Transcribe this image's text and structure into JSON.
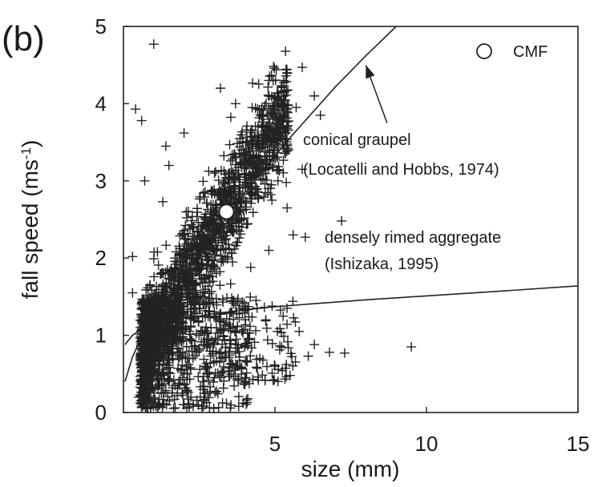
{
  "panel_label": "(b)",
  "chart_data": {
    "type": "scatter",
    "xlabel": "size (mm)",
    "ylabel_main": "fall speed (ms",
    "ylabel_sup": "-1",
    "ylabel_close": ")",
    "xlim": [
      0,
      15
    ],
    "ylim": [
      0,
      5
    ],
    "xticks": [
      5,
      10,
      15
    ],
    "yticks": [
      0,
      1,
      2,
      3,
      4,
      5
    ],
    "legend": {
      "label": "CMF",
      "placement": "top-right"
    },
    "cmf_point": {
      "x": 3.4,
      "y": 2.6
    },
    "annotations": {
      "graupel_line1": "conical graupel",
      "graupel_line2": "(Locatelli and Hobbs, 1974)",
      "aggregate_line1": "densely rimed aggregate",
      "aggregate_line2": "(Ishizaka, 1995)"
    },
    "arrow": {
      "from": [
        8.7,
        3.75
      ],
      "to": [
        8.0,
        4.5
      ]
    },
    "curves": [
      {
        "name": "conical graupel",
        "x": [
          0.05,
          0.3,
          0.6,
          1.0,
          1.5,
          2.0,
          2.5,
          3.0,
          3.5,
          4.0,
          4.5,
          5.0,
          5.5,
          6.0,
          6.5,
          7.0,
          7.5,
          8.0,
          8.5,
          9.0
        ],
        "y": [
          0.4,
          0.72,
          0.98,
          1.22,
          1.5,
          1.78,
          2.05,
          2.32,
          2.58,
          2.84,
          3.08,
          3.32,
          3.56,
          3.78,
          4.0,
          4.22,
          4.42,
          4.62,
          4.81,
          5.0
        ]
      },
      {
        "name": "densely rimed aggregate",
        "x": [
          0.05,
          0.3,
          0.6,
          1.0,
          1.5,
          2.0,
          2.5,
          3.0,
          4.0,
          5.0,
          6.0,
          8.0,
          10.0,
          12.0,
          15.0
        ],
        "y": [
          0.88,
          1.0,
          1.08,
          1.13,
          1.18,
          1.22,
          1.25,
          1.28,
          1.33,
          1.37,
          1.4,
          1.46,
          1.51,
          1.56,
          1.64
        ]
      }
    ],
    "outliers": [
      {
        "x": 1.0,
        "y": 4.77
      },
      {
        "x": 0.4,
        "y": 3.93
      },
      {
        "x": 0.6,
        "y": 3.78
      },
      {
        "x": 1.4,
        "y": 3.45
      },
      {
        "x": 2.0,
        "y": 3.62
      },
      {
        "x": 1.5,
        "y": 3.2
      },
      {
        "x": 0.7,
        "y": 3.0
      },
      {
        "x": 3.7,
        "y": 4.0
      },
      {
        "x": 3.2,
        "y": 4.2
      },
      {
        "x": 4.8,
        "y": 4.3
      },
      {
        "x": 5.4,
        "y": 4.4
      },
      {
        "x": 5.9,
        "y": 4.47
      },
      {
        "x": 6.3,
        "y": 4.1
      },
      {
        "x": 5.7,
        "y": 3.95
      },
      {
        "x": 6.5,
        "y": 3.85
      },
      {
        "x": 5.1,
        "y": 3.0
      },
      {
        "x": 5.4,
        "y": 2.65
      },
      {
        "x": 5.6,
        "y": 2.3
      },
      {
        "x": 6.0,
        "y": 2.27
      },
      {
        "x": 7.2,
        "y": 2.48
      },
      {
        "x": 4.8,
        "y": 2.1
      },
      {
        "x": 4.2,
        "y": 1.88
      },
      {
        "x": 1.3,
        "y": 2.73
      },
      {
        "x": 0.3,
        "y": 2.02
      },
      {
        "x": 0.3,
        "y": 1.55
      },
      {
        "x": 5.4,
        "y": 1.35
      },
      {
        "x": 4.7,
        "y": 1.2
      },
      {
        "x": 5.8,
        "y": 1.05
      },
      {
        "x": 6.3,
        "y": 0.88
      },
      {
        "x": 6.1,
        "y": 0.73
      },
      {
        "x": 6.8,
        "y": 0.78
      },
      {
        "x": 7.3,
        "y": 0.77
      },
      {
        "x": 9.5,
        "y": 0.85
      },
      {
        "x": 5.0,
        "y": 0.6
      },
      {
        "x": 5.5,
        "y": 0.48
      },
      {
        "x": 4.5,
        "y": 0.7
      },
      {
        "x": 3.4,
        "y": 0.12
      },
      {
        "x": 2.7,
        "y": 0.25
      },
      {
        "x": 2.0,
        "y": 0.1
      },
      {
        "x": 3.0,
        "y": 0.9
      },
      {
        "x": 2.5,
        "y": 0.8
      },
      {
        "x": 4.0,
        "y": 0.85
      },
      {
        "x": 0.8,
        "y": 0.05
      },
      {
        "x": 1.5,
        "y": 0.4
      },
      {
        "x": 0.5,
        "y": 0.2
      },
      {
        "x": 5.9,
        "y": 3.15
      },
      {
        "x": 4.9,
        "y": 2.75
      },
      {
        "x": 3.6,
        "y": 1.95
      }
    ]
  }
}
